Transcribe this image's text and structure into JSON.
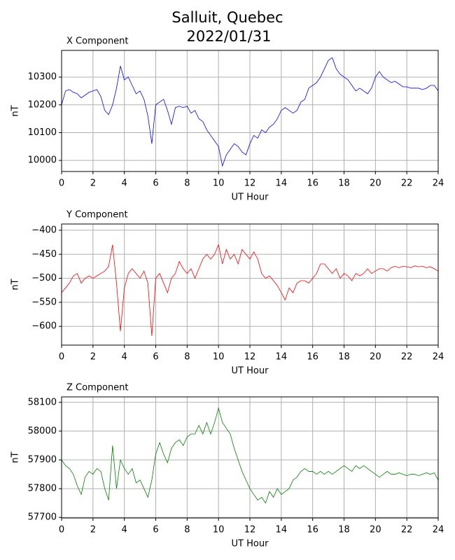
{
  "title": [
    "Salluit, Quebec",
    "2022/01/31"
  ],
  "chart_data": [
    {
      "type": "line",
      "title": "X Component",
      "xlabel": "UT Hour",
      "ylabel": "nT",
      "grid": true,
      "xlim": [
        0,
        24
      ],
      "xticks": [
        0,
        2,
        4,
        6,
        8,
        10,
        12,
        14,
        16,
        18,
        20,
        22,
        24
      ],
      "ylim": [
        9960,
        10396
      ],
      "yticks": [
        10000,
        10100,
        10200,
        10300
      ],
      "x": [
        0,
        0.25,
        0.5,
        0.75,
        1,
        1.25,
        1.5,
        1.75,
        2,
        2.25,
        2.5,
        2.75,
        3,
        3.25,
        3.5,
        3.75,
        4,
        4.25,
        4.5,
        4.75,
        5,
        5.25,
        5.5,
        5.75,
        6,
        6.25,
        6.5,
        6.75,
        7,
        7.25,
        7.5,
        7.75,
        8,
        8.25,
        8.5,
        8.75,
        9,
        9.25,
        9.5,
        9.75,
        10,
        10.25,
        10.5,
        10.75,
        11,
        11.25,
        11.5,
        11.75,
        12,
        12.25,
        12.5,
        12.75,
        13,
        13.25,
        13.5,
        13.75,
        14,
        14.25,
        14.5,
        14.75,
        15,
        15.25,
        15.5,
        15.75,
        16,
        16.25,
        16.5,
        16.75,
        17,
        17.25,
        17.5,
        17.75,
        18,
        18.25,
        18.5,
        18.75,
        19,
        19.25,
        19.5,
        19.75,
        20,
        20.25,
        20.5,
        20.75,
        21,
        21.25,
        21.5,
        21.75,
        22,
        22.25,
        22.5,
        22.75,
        23,
        23.25,
        23.5,
        23.75,
        24
      ],
      "series": [
        {
          "color": "#0000ff",
          "values": [
            10200,
            10250,
            10255,
            10245,
            10240,
            10225,
            10235,
            10245,
            10250,
            10255,
            10230,
            10180,
            10165,
            10200,
            10260,
            10340,
            10290,
            10300,
            10270,
            10240,
            10250,
            10220,
            10160,
            10060,
            10200,
            10210,
            10220,
            10180,
            10130,
            10190,
            10195,
            10190,
            10195,
            10170,
            10180,
            10150,
            10140,
            10110,
            10090,
            10070,
            10050,
            9980,
            10020,
            10040,
            10060,
            10050,
            10030,
            10020,
            10060,
            10090,
            10080,
            10110,
            10100,
            10120,
            10130,
            10150,
            10180,
            10190,
            10180,
            10170,
            10180,
            10210,
            10220,
            10260,
            10270,
            10280,
            10300,
            10330,
            10360,
            10370,
            10330,
            10310,
            10300,
            10290,
            10270,
            10250,
            10260,
            10250,
            10240,
            10260,
            10300,
            10320,
            10300,
            10290,
            10280,
            10285,
            10275,
            10265,
            10265,
            10260,
            10260,
            10260,
            10255,
            10260,
            10270,
            10270,
            10250
          ]
        }
      ]
    },
    {
      "type": "line",
      "title": "Y Component",
      "xlabel": "UT Hour",
      "ylabel": "nT",
      "grid": true,
      "xlim": [
        0,
        24
      ],
      "xticks": [
        0,
        2,
        4,
        6,
        8,
        10,
        12,
        14,
        16,
        18,
        20,
        22,
        24
      ],
      "ylim": [
        -639,
        -387
      ],
      "yticks": [
        {
          "value": -600,
          "label": "−600"
        },
        {
          "value": -550,
          "label": "−550"
        },
        {
          "value": -500,
          "label": "−500"
        },
        {
          "value": -450,
          "label": "−450"
        },
        {
          "value": -400,
          "label": "−400"
        }
      ],
      "x": [
        0,
        0.25,
        0.5,
        0.75,
        1,
        1.25,
        1.5,
        1.75,
        2,
        2.25,
        2.5,
        2.75,
        3,
        3.25,
        3.5,
        3.75,
        4,
        4.25,
        4.5,
        4.75,
        5,
        5.25,
        5.5,
        5.75,
        6,
        6.25,
        6.5,
        6.75,
        7,
        7.25,
        7.5,
        7.75,
        8,
        8.25,
        8.5,
        8.75,
        9,
        9.25,
        9.5,
        9.75,
        10,
        10.25,
        10.5,
        10.75,
        11,
        11.25,
        11.5,
        11.75,
        12,
        12.25,
        12.5,
        12.75,
        13,
        13.25,
        13.5,
        13.75,
        14,
        14.25,
        14.5,
        14.75,
        15,
        15.25,
        15.5,
        15.75,
        16,
        16.25,
        16.5,
        16.75,
        17,
        17.25,
        17.5,
        17.75,
        18,
        18.25,
        18.5,
        18.75,
        19,
        19.25,
        19.5,
        19.75,
        20,
        20.25,
        20.5,
        20.75,
        21,
        21.25,
        21.5,
        21.75,
        22,
        22.25,
        22.5,
        22.75,
        23,
        23.25,
        23.5,
        23.75,
        24
      ],
      "series": [
        {
          "color": "#ff0000",
          "values": [
            -530,
            -520,
            -510,
            -495,
            -490,
            -510,
            -500,
            -495,
            -500,
            -495,
            -490,
            -485,
            -475,
            -430,
            -510,
            -610,
            -520,
            -490,
            -480,
            -490,
            -500,
            -485,
            -510,
            -620,
            -500,
            -490,
            -510,
            -530,
            -500,
            -490,
            -465,
            -480,
            -490,
            -480,
            -500,
            -480,
            -460,
            -450,
            -460,
            -450,
            -430,
            -470,
            -440,
            -460,
            -450,
            -470,
            -440,
            -450,
            -460,
            -445,
            -460,
            -490,
            -500,
            -495,
            -505,
            -515,
            -530,
            -545,
            -520,
            -530,
            -510,
            -505,
            -505,
            -510,
            -500,
            -490,
            -470,
            -470,
            -480,
            -490,
            -480,
            -500,
            -490,
            -495,
            -505,
            -490,
            -495,
            -490,
            -480,
            -490,
            -485,
            -480,
            -480,
            -485,
            -478,
            -475,
            -478,
            -475,
            -476,
            -478,
            -474,
            -476,
            -475,
            -478,
            -476,
            -480,
            -485
          ]
        }
      ]
    },
    {
      "type": "line",
      "title": "Z Component",
      "xlabel": "UT Hour",
      "ylabel": "nT",
      "grid": true,
      "xlim": [
        0,
        24
      ],
      "xticks": [
        0,
        2,
        4,
        6,
        8,
        10,
        12,
        14,
        16,
        18,
        20,
        22,
        24
      ],
      "ylim": [
        57698,
        58119
      ],
      "yticks": [
        57700,
        57800,
        57900,
        58000,
        58100
      ],
      "x": [
        0,
        0.25,
        0.5,
        0.75,
        1,
        1.25,
        1.5,
        1.75,
        2,
        2.25,
        2.5,
        2.75,
        3,
        3.25,
        3.5,
        3.75,
        4,
        4.25,
        4.5,
        4.75,
        5,
        5.25,
        5.5,
        5.75,
        6,
        6.25,
        6.5,
        6.75,
        7,
        7.25,
        7.5,
        7.75,
        8,
        8.25,
        8.5,
        8.75,
        9,
        9.25,
        9.5,
        9.75,
        10,
        10.25,
        10.5,
        10.75,
        11,
        11.25,
        11.5,
        11.75,
        12,
        12.25,
        12.5,
        12.75,
        13,
        13.25,
        13.5,
        13.75,
        14,
        14.25,
        14.5,
        14.75,
        15,
        15.25,
        15.5,
        15.75,
        16,
        16.25,
        16.5,
        16.75,
        17,
        17.25,
        17.5,
        17.75,
        18,
        18.25,
        18.5,
        18.75,
        19,
        19.25,
        19.5,
        19.75,
        20,
        20.25,
        20.5,
        20.75,
        21,
        21.25,
        21.5,
        21.75,
        22,
        22.25,
        22.5,
        22.75,
        23,
        23.25,
        23.5,
        23.75,
        24
      ],
      "series": [
        {
          "color": "#008000",
          "values": [
            57900,
            57880,
            57870,
            57850,
            57810,
            57780,
            57840,
            57860,
            57850,
            57870,
            57860,
            57800,
            57760,
            57950,
            57800,
            57900,
            57870,
            57850,
            57870,
            57820,
            57830,
            57800,
            57770,
            57830,
            57920,
            57960,
            57920,
            57890,
            57940,
            57960,
            57970,
            57950,
            57980,
            57990,
            57990,
            58020,
            57990,
            58030,
            57990,
            58030,
            58080,
            58030,
            58010,
            57990,
            57940,
            57900,
            57860,
            57830,
            57800,
            57780,
            57760,
            57770,
            57750,
            57790,
            57770,
            57800,
            57780,
            57790,
            57800,
            57830,
            57840,
            57860,
            57870,
            57860,
            57860,
            57850,
            57860,
            57850,
            57860,
            57850,
            57860,
            57870,
            57880,
            57870,
            57860,
            57880,
            57870,
            57880,
            57870,
            57860,
            57850,
            57840,
            57850,
            57860,
            57850,
            57850,
            57855,
            57850,
            57845,
            57850,
            57850,
            57845,
            57850,
            57855,
            57850,
            57855,
            57830
          ]
        }
      ]
    }
  ]
}
